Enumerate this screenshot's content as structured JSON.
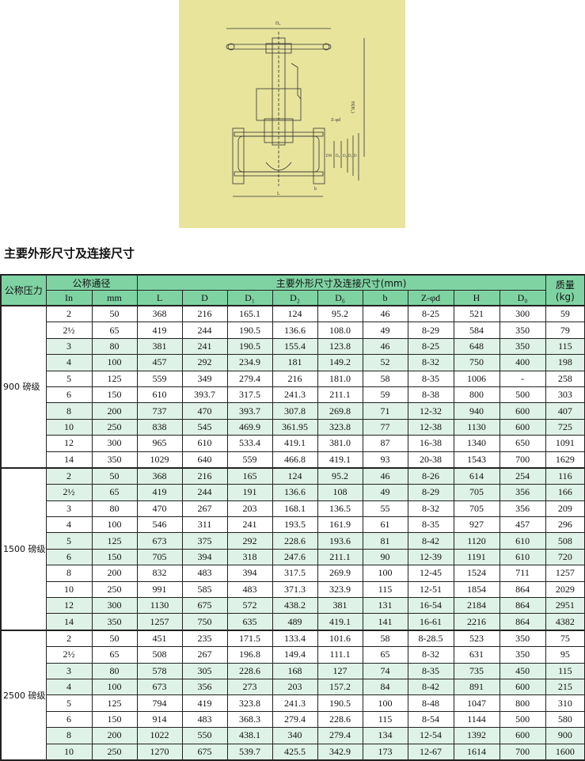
{
  "drawing": {
    "labels": {
      "handwheel_dia": "D₀",
      "height": "H(H₁)",
      "bolts": "Z-φd",
      "nominal": "DN",
      "face": "D₆",
      "raised": "D₂",
      "pcd": "D₁",
      "flange": "D",
      "length": "L",
      "thickness": "b"
    },
    "background": "#e8e49c"
  },
  "title": "主要外形尺寸及连接尺寸",
  "table": {
    "header": {
      "pressure": "公称压力",
      "nominal": "公称通径",
      "dims": "主要外形尺寸及连接尺寸(mm)",
      "mass": "质量",
      "mass_unit": "(kg)",
      "sub": [
        "In",
        "mm",
        "L",
        "D",
        "D₁",
        "D₂",
        "D₆",
        "b",
        "Z-φd",
        "H",
        "D₀"
      ]
    },
    "header_color": "#7fd3a3",
    "stripe_color": "#dff2e7",
    "groups": [
      {
        "pressure": "900 磅级",
        "rows": [
          [
            "2",
            "50",
            "368",
            "216",
            "165.1",
            "124",
            "95.2",
            "46",
            "8-25",
            "521",
            "300",
            "59"
          ],
          [
            "2½",
            "65",
            "419",
            "244",
            "190.5",
            "136.6",
            "108.0",
            "49",
            "8-29",
            "584",
            "350",
            "79"
          ],
          [
            "3",
            "80",
            "381",
            "241",
            "190.5",
            "155.4",
            "123.8",
            "46",
            "8-25",
            "648",
            "350",
            "115"
          ],
          [
            "4",
            "100",
            "457",
            "292",
            "234.9",
            "181",
            "149.2",
            "52",
            "8-32",
            "750",
            "400",
            "198"
          ],
          [
            "5",
            "125",
            "559",
            "349",
            "279.4",
            "216",
            "181.0",
            "58",
            "8-35",
            "1006",
            "-",
            "258"
          ],
          [
            "6",
            "150",
            "610",
            "393.7",
            "317.5",
            "241.3",
            "211.1",
            "59",
            "8-38",
            "800",
            "500",
            "303"
          ],
          [
            "8",
            "200",
            "737",
            "470",
            "393.7",
            "307.8",
            "269.8",
            "71",
            "12-32",
            "940",
            "600",
            "407"
          ],
          [
            "10",
            "250",
            "838",
            "545",
            "469.9",
            "361.95",
            "323.8",
            "77",
            "12-38",
            "1130",
            "600",
            "725"
          ],
          [
            "12",
            "300",
            "965",
            "610",
            "533.4",
            "419.1",
            "381.0",
            "87",
            "16-38",
            "1340",
            "650",
            "1091"
          ],
          [
            "14",
            "350",
            "1029",
            "640",
            "559",
            "466.8",
            "419.1",
            "93",
            "20-38",
            "1543",
            "700",
            "1629"
          ]
        ]
      },
      {
        "pressure": "1500 磅级",
        "rows": [
          [
            "2",
            "50",
            "368",
            "216",
            "165",
            "124",
            "95.2",
            "46",
            "8-26",
            "614",
            "254",
            "116"
          ],
          [
            "2½",
            "65",
            "419",
            "244",
            "191",
            "136.6",
            "108",
            "49",
            "8-29",
            "705",
            "356",
            "166"
          ],
          [
            "3",
            "80",
            "470",
            "267",
            "203",
            "168.1",
            "136.5",
            "55",
            "8-32",
            "705",
            "356",
            "209"
          ],
          [
            "4",
            "100",
            "546",
            "311",
            "241",
            "193.5",
            "161.9",
            "61",
            "8-35",
            "927",
            "457",
            "296"
          ],
          [
            "5",
            "125",
            "673",
            "375",
            "292",
            "228.6",
            "193.6",
            "81",
            "8-42",
            "1120",
            "610",
            "508"
          ],
          [
            "6",
            "150",
            "705",
            "394",
            "318",
            "247.6",
            "211.1",
            "90",
            "12-39",
            "1191",
            "610",
            "720"
          ],
          [
            "8",
            "200",
            "832",
            "483",
            "394",
            "317.5",
            "269.9",
            "100",
            "12-45",
            "1524",
            "711",
            "1257"
          ],
          [
            "10",
            "250",
            "991",
            "585",
            "483",
            "371.3",
            "323.9",
            "115",
            "12-51",
            "1854",
            "864",
            "2029"
          ],
          [
            "12",
            "300",
            "1130",
            "675",
            "572",
            "438.2",
            "381",
            "131",
            "16-54",
            "2184",
            "864",
            "2951"
          ],
          [
            "14",
            "350",
            "1257",
            "750",
            "635",
            "489",
            "419.1",
            "141",
            "16-61",
            "2216",
            "864",
            "4382"
          ]
        ]
      },
      {
        "pressure": "2500 磅级",
        "rows": [
          [
            "2",
            "50",
            "451",
            "235",
            "171.5",
            "133.4",
            "101.6",
            "58",
            "8-28.5",
            "523",
            "350",
            "75"
          ],
          [
            "2½",
            "65",
            "508",
            "267",
            "196.8",
            "149.4",
            "111.1",
            "65",
            "8-32",
            "631",
            "350",
            "95"
          ],
          [
            "3",
            "80",
            "578",
            "305",
            "228.6",
            "168",
            "127",
            "74",
            "8-35",
            "735",
            "450",
            "115"
          ],
          [
            "4",
            "100",
            "673",
            "356",
            "273",
            "203",
            "157.2",
            "84",
            "8-42",
            "891",
            "600",
            "215"
          ],
          [
            "5",
            "125",
            "794",
            "419",
            "323.8",
            "241.3",
            "190.5",
            "100",
            "8-48",
            "1047",
            "800",
            "310"
          ],
          [
            "6",
            "150",
            "914",
            "483",
            "368.3",
            "279.4",
            "228.6",
            "115",
            "8-54",
            "1144",
            "500",
            "580"
          ],
          [
            "8",
            "200",
            "1022",
            "550",
            "438.1",
            "340",
            "279.4",
            "134",
            "12-54",
            "1392",
            "600",
            "900"
          ],
          [
            "10",
            "250",
            "1270",
            "675",
            "539.7",
            "425.5",
            "342.9",
            "173",
            "12-67",
            "1614",
            "700",
            "1600"
          ]
        ]
      }
    ]
  }
}
